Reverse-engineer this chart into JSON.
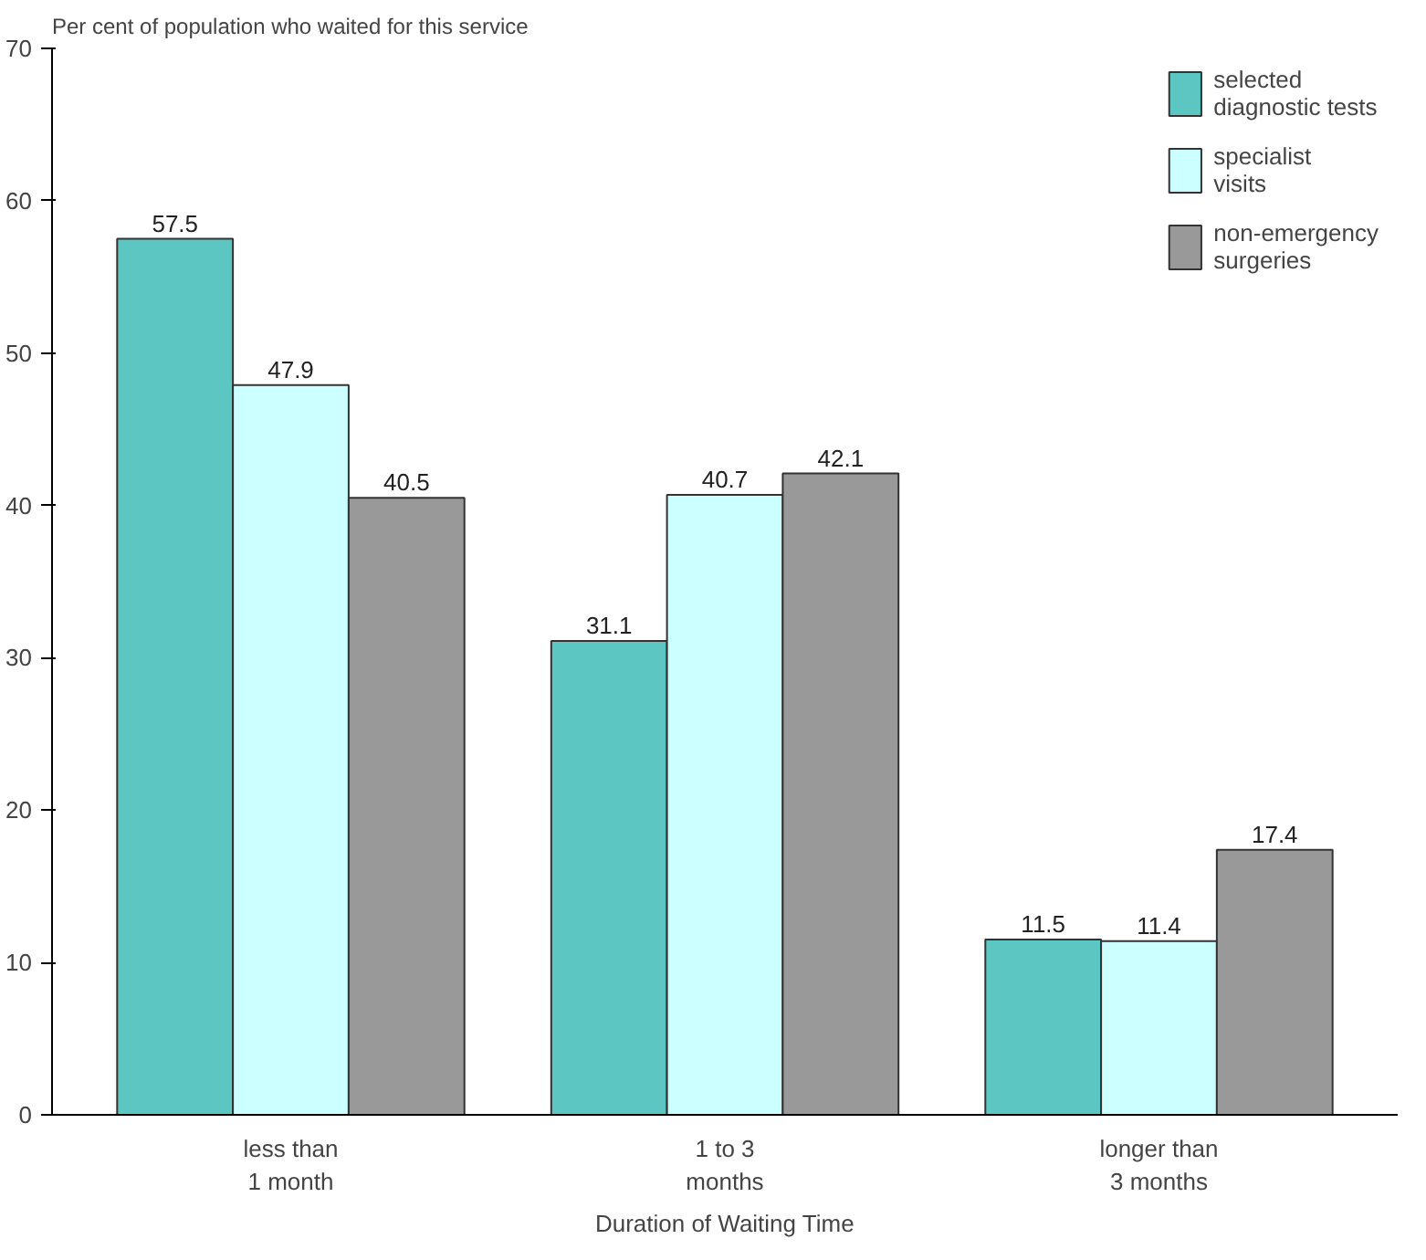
{
  "chart_data": {
    "type": "bar",
    "ylabel": "Per cent of population who waited for this service",
    "xlabel": "Duration of Waiting Time",
    "categories": [
      "less than\n1 month",
      "1 to 3\nmonths",
      "longer than\n3 months"
    ],
    "series": [
      {
        "name": "selected\ndiagnostic tests",
        "color": "#5cc6c2",
        "values": [
          57.5,
          31.1,
          11.5
        ]
      },
      {
        "name": "specialist\nvisits",
        "color": "#ccffff",
        "values": [
          47.9,
          40.7,
          11.4
        ]
      },
      {
        "name": "non-emergency\nsurgeries",
        "color": "#999999",
        "values": [
          40.5,
          42.1,
          17.4
        ]
      }
    ],
    "ylim": [
      0,
      70
    ],
    "yticks": [
      0,
      10,
      20,
      30,
      40,
      50,
      60,
      70
    ],
    "grid": false,
    "legend": "top right",
    "data_labels": true
  }
}
